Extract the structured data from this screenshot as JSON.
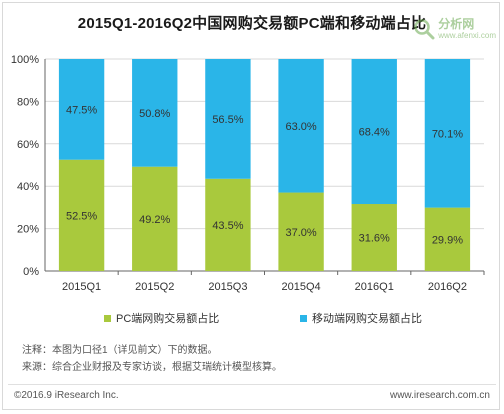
{
  "watermark": {
    "cn": "分析网",
    "url": "www.afenxi.com"
  },
  "notes": {
    "note1": "注释：本图为口径1（详见前文）下的数据。",
    "note2": "来源：综合企业财报及专家访谈，根据艾瑞统计模型核算。"
  },
  "footer": {
    "copyright": "©2016.9 iResearch Inc.",
    "website": "www.iresearch.com.cn"
  },
  "colors": {
    "pc": "#a9c93d",
    "mobile": "#2ab5e8",
    "grid": "#d9d9d9",
    "axis": "#666666"
  },
  "chart_data": {
    "type": "bar",
    "stacked": true,
    "percent": true,
    "title": "2015Q1-2016Q2中国网购交易额PC端和移动端占比",
    "categories": [
      "2015Q1",
      "2015Q2",
      "2015Q3",
      "2015Q4",
      "2016Q1",
      "2016Q2"
    ],
    "series": [
      {
        "name": "PC端网购交易额占比",
        "values": [
          52.5,
          49.2,
          43.5,
          37.0,
          31.6,
          29.9
        ],
        "labels": [
          "52.5%",
          "49.2%",
          "43.5%",
          "37.0%",
          "31.6%",
          "29.9%"
        ]
      },
      {
        "name": "移动端网购交易额占比",
        "values": [
          47.5,
          50.8,
          56.5,
          63.0,
          68.4,
          70.1
        ],
        "labels": [
          "47.5%",
          "50.8%",
          "56.5%",
          "63.0%",
          "68.4%",
          "70.1%"
        ]
      }
    ],
    "ylim": [
      0,
      100
    ],
    "yticks": [
      "0%",
      "20%",
      "40%",
      "60%",
      "80%",
      "100%"
    ],
    "legend_position": "bottom",
    "grid": true
  }
}
